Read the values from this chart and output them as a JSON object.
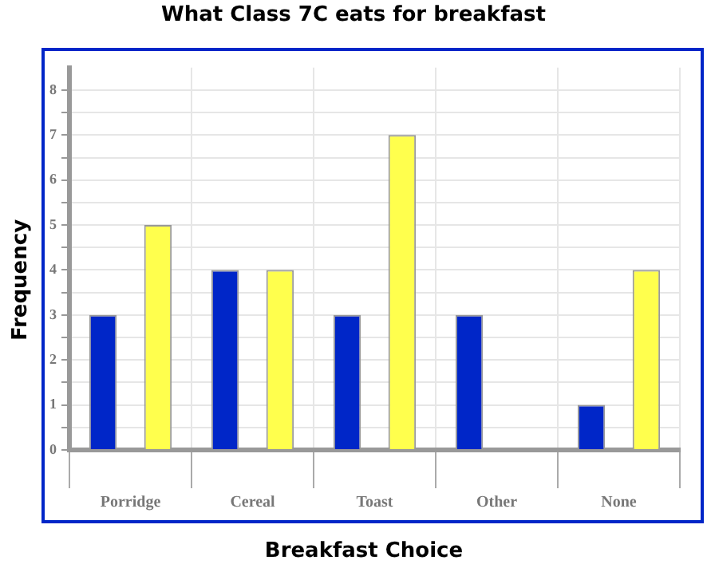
{
  "chart_data": {
    "type": "bar",
    "title": "What Class 7C eats for breakfast",
    "xlabel": "Breakfast Choice",
    "ylabel": "Frequency",
    "categories": [
      "Porridge",
      "Cereal",
      "Toast",
      "Other",
      "None"
    ],
    "series": [
      {
        "color": "#0026c8",
        "values": [
          3,
          4,
          3,
          3,
          1
        ]
      },
      {
        "color": "#ffff4d",
        "values": [
          5,
          4,
          7,
          0,
          4
        ]
      }
    ],
    "ylim": [
      0,
      8.5
    ],
    "yticks": [
      0,
      {
        "value": 0.5,
        "label": null
      },
      1,
      {
        "value": 1.5,
        "label": null
      },
      2,
      {
        "value": 2.5,
        "label": null
      },
      3,
      {
        "value": 3.5,
        "label": null
      },
      4,
      {
        "value": 4.5,
        "label": null
      },
      5,
      {
        "value": 5.5,
        "label": null
      },
      6,
      {
        "value": 6.5,
        "label": null
      },
      7,
      {
        "value": 7.5,
        "label": null
      },
      8
    ],
    "grid": true,
    "legend": false
  }
}
